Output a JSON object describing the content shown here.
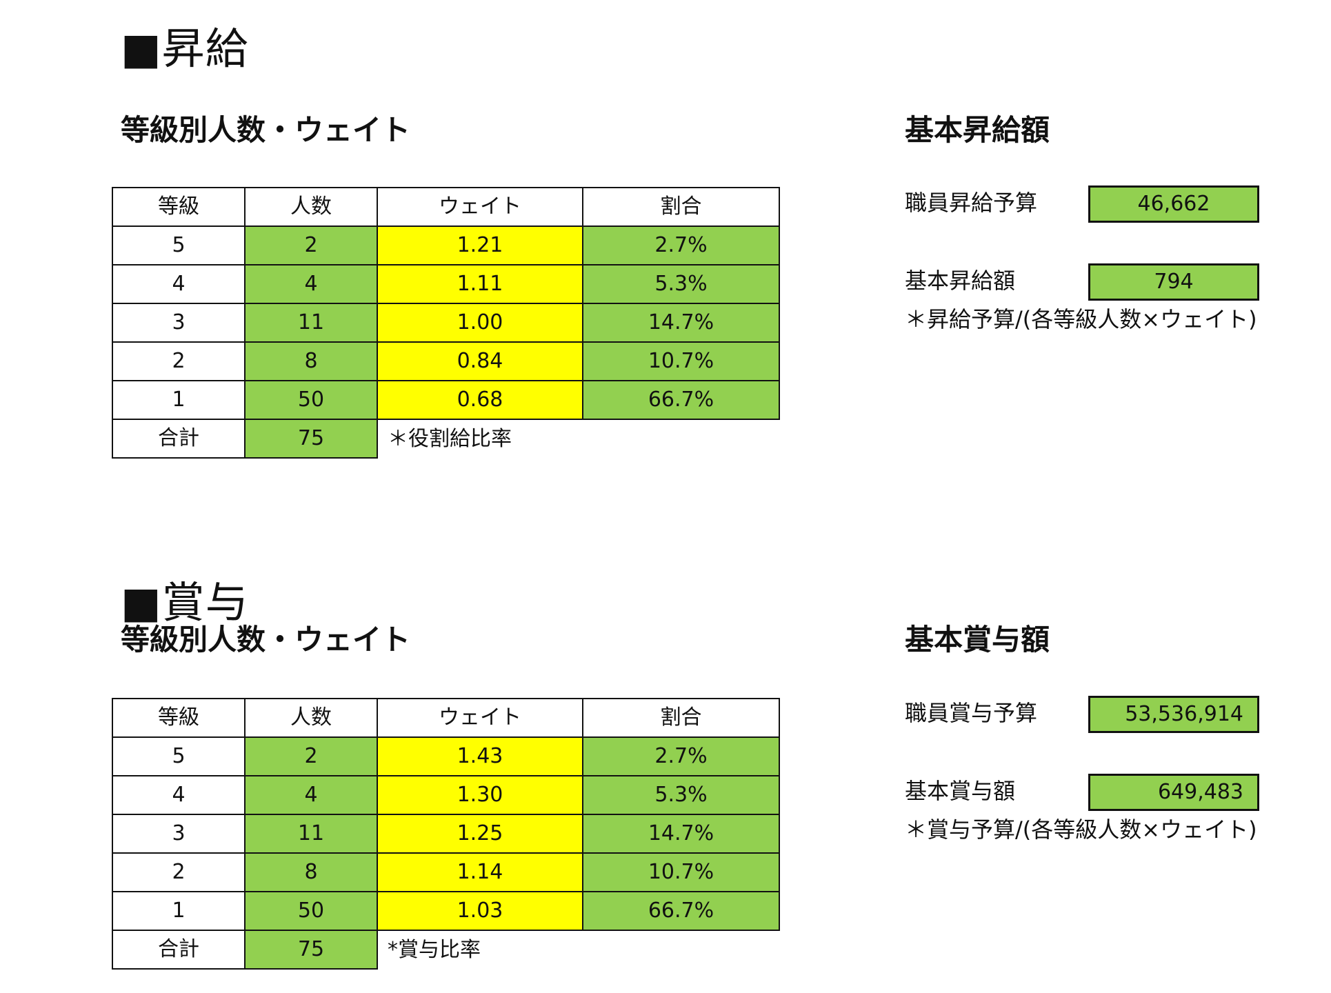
{
  "raise": {
    "title": "■昇給",
    "table_title": "等級別人数・ウェイト",
    "headers": [
      "等級",
      "人数",
      "ウェイト",
      "割合"
    ],
    "rows": [
      {
        "grade": "5",
        "count": "2",
        "weight": "1.21",
        "ratio": "2.7%"
      },
      {
        "grade": "4",
        "count": "4",
        "weight": "1.11",
        "ratio": "5.3%"
      },
      {
        "grade": "3",
        "count": "11",
        "weight": "1.00",
        "ratio": "14.7%"
      },
      {
        "grade": "2",
        "count": "8",
        "weight": "0.84",
        "ratio": "10.7%"
      },
      {
        "grade": "1",
        "count": "50",
        "weight": "0.68",
        "ratio": "66.7%"
      }
    ],
    "total_label": "合計",
    "total_count": "75",
    "weight_note": "＊役割給比率",
    "basic_title": "基本昇給額",
    "budget_label": "職員昇給予算",
    "budget_value": "46,662",
    "amount_label": "基本昇給額",
    "amount_value": "794",
    "formula_note": "＊昇給予算/(各等級人数×ウェイト)"
  },
  "bonus": {
    "title": "■賞与",
    "table_title": "等級別人数・ウェイト",
    "headers": [
      "等級",
      "人数",
      "ウェイト",
      "割合"
    ],
    "rows": [
      {
        "grade": "5",
        "count": "2",
        "weight": "1.43",
        "ratio": "2.7%"
      },
      {
        "grade": "4",
        "count": "4",
        "weight": "1.30",
        "ratio": "5.3%"
      },
      {
        "grade": "3",
        "count": "11",
        "weight": "1.25",
        "ratio": "14.7%"
      },
      {
        "grade": "2",
        "count": "8",
        "weight": "1.14",
        "ratio": "10.7%"
      },
      {
        "grade": "1",
        "count": "50",
        "weight": "1.03",
        "ratio": "66.7%"
      }
    ],
    "total_label": "合計",
    "total_count": "75",
    "weight_note": "*賞与比率",
    "basic_title": "基本賞与額",
    "budget_label": "職員賞与予算",
    "budget_value": "53,536,914",
    "amount_label": "基本賞与額",
    "amount_value": "649,483",
    "formula_note": "＊賞与予算/(各等級人数×ウェイト)"
  },
  "colors": {
    "input_green": "#92d050",
    "weight_yellow": "#ffff00"
  }
}
